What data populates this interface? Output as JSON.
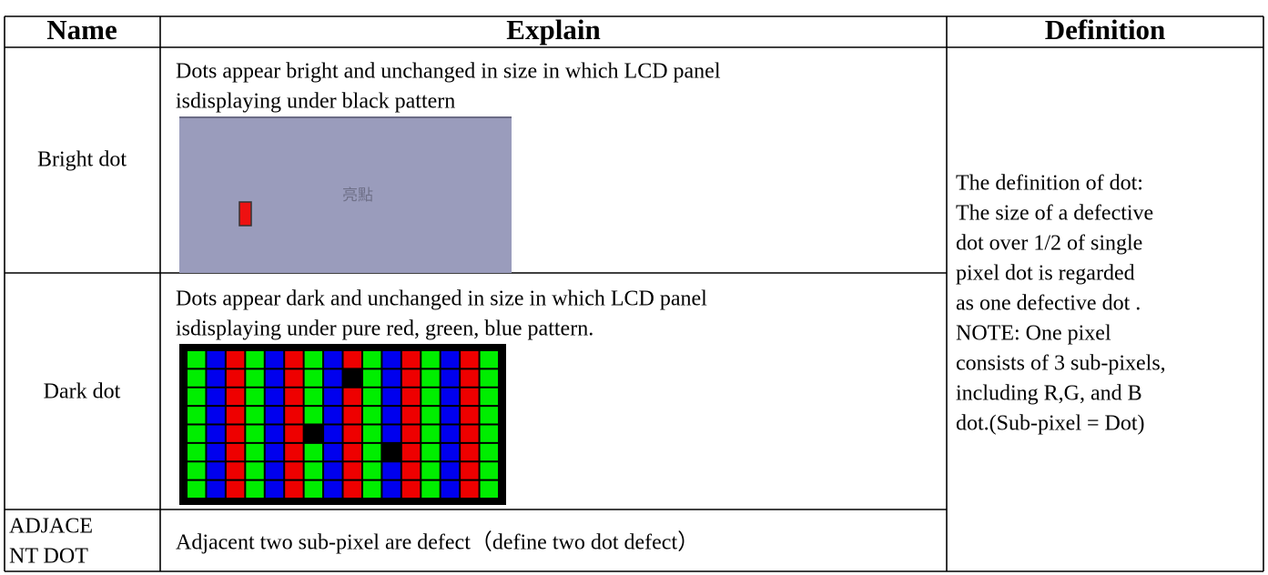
{
  "table": {
    "headers": [
      "Name",
      "Explain",
      "Definition"
    ],
    "rows": [
      {
        "name": [
          "Bright dot"
        ],
        "explain": [
          "Dots appear bright and unchanged in size in which LCD panel",
          "isdisplaying under black pattern"
        ],
        "image_label": "亮點"
      },
      {
        "name": [
          "Dark dot"
        ],
        "explain": [
          "Dots appear dark and unchanged in size in which LCD panel",
          "isdisplaying under pure red, green, blue pattern."
        ]
      },
      {
        "name": [
          "ADJACE",
          "NT DOT"
        ],
        "explain": [
          "Adjacent two sub-pixel are defect（define two dot defect）"
        ]
      }
    ],
    "definition": [
      "The definition of dot:",
      "The size of a defective",
      "dot over 1/2 of single",
      "pixel dot is regarded",
      "as one defective dot .",
      "NOTE: One pixel",
      "consists of 3 sub-pixels,",
      "including R,G, and B",
      "dot.(Sub-pixel = Dot)"
    ]
  }
}
